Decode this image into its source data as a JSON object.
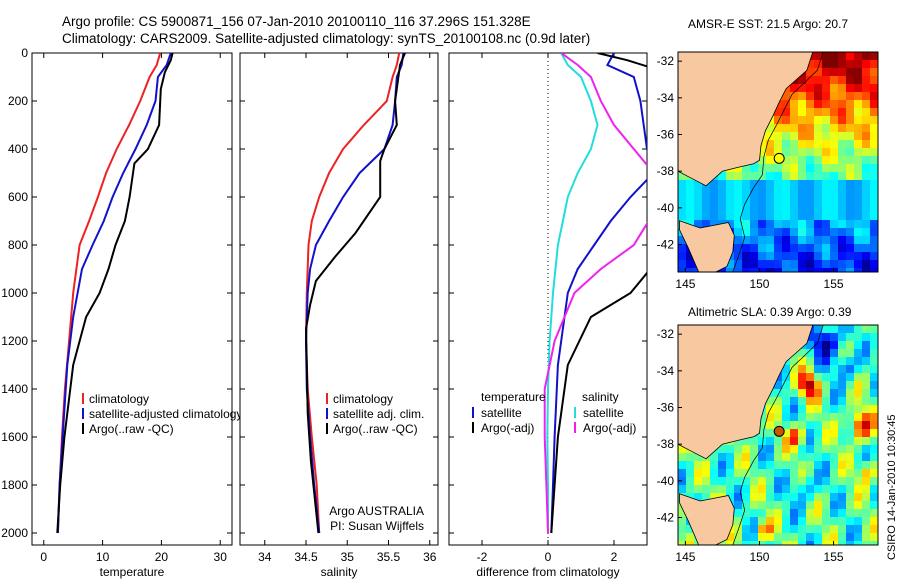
{
  "header": {
    "line1": "Argo profile: CS 5900871_156 07-Jan-2010 20100110_116 37.296S 151.328E",
    "line2": "Climatology: CARS2009. Satellite-adjusted climatology: synTS_20100108.nc (0.9d later)"
  },
  "credit": "CSIRO 14-Jan-2010 10:30:45",
  "colors": {
    "climatology": "#ee2222",
    "satellite": "#1111cc",
    "argo": "#000000",
    "temp_diff": "#22dddd",
    "sal_diff": "#ee22ee",
    "land": "#f8c8a0"
  },
  "chart_data": [
    {
      "type": "line",
      "name": "temperature-profile",
      "xlabel": "temperature",
      "ylabel": "",
      "xlim": [
        -2,
        32
      ],
      "ylim": [
        2050,
        0
      ],
      "xticks": [
        0,
        10,
        20,
        30
      ],
      "yticks": [
        0,
        200,
        400,
        600,
        800,
        1000,
        1200,
        1400,
        1600,
        1800,
        2000
      ],
      "series": [
        {
          "name": "climatology",
          "color": "#ee2222",
          "x": [
            19.8,
            19.2,
            18.0,
            16.4,
            14.5,
            12.4,
            10.6,
            9.2,
            7.7,
            6.1,
            5.0,
            4.3,
            3.6,
            3.1,
            2.7,
            2.4
          ],
          "y": [
            0,
            50,
            100,
            200,
            300,
            400,
            500,
            600,
            700,
            800,
            1000,
            1200,
            1400,
            1600,
            1800,
            2000
          ]
        },
        {
          "name": "satellite-adjusted climatology",
          "color": "#1111cc",
          "x": [
            21.6,
            20.9,
            19.4,
            19.0,
            17.5,
            15.6,
            13.5,
            11.7,
            10.2,
            8.3,
            6.5,
            5.0,
            4.0,
            3.2,
            2.7,
            2.4
          ],
          "y": [
            0,
            50,
            100,
            200,
            300,
            400,
            500,
            600,
            700,
            800,
            900,
            1100,
            1300,
            1600,
            1800,
            2000
          ]
        },
        {
          "name": "Argo(..raw -QC)",
          "color": "#000000",
          "x": [
            21.9,
            21.6,
            20.6,
            19.9,
            19.6,
            17.7,
            15.4,
            14.6,
            13.8,
            12.2,
            11.0,
            9.5,
            7.2,
            5.0,
            3.5,
            2.8,
            2.3
          ],
          "y": [
            0,
            30,
            80,
            150,
            300,
            400,
            460,
            600,
            700,
            800,
            900,
            1000,
            1100,
            1300,
            1600,
            1800,
            2000
          ]
        }
      ],
      "legend": [
        "climatology",
        "satellite-adjusted climatology",
        "Argo(..raw -QC)"
      ]
    },
    {
      "type": "line",
      "name": "salinity-profile",
      "xlabel": "salinity",
      "ylabel": "",
      "xlim": [
        33.7,
        36.1
      ],
      "ylim": [
        2050,
        0
      ],
      "xticks": [
        34,
        34.5,
        35,
        35.5,
        36
      ],
      "series": [
        {
          "name": "climatology",
          "color": "#ee2222",
          "x": [
            35.63,
            35.6,
            35.55,
            35.48,
            35.2,
            34.95,
            34.78,
            34.66,
            34.57,
            34.53,
            34.51,
            34.5,
            34.52,
            34.57,
            34.63,
            34.66
          ],
          "y": [
            0,
            50,
            100,
            200,
            300,
            400,
            500,
            600,
            700,
            800,
            1000,
            1200,
            1400,
            1600,
            1800,
            2000
          ]
        },
        {
          "name": "satellite adj. clim.",
          "color": "#1111cc",
          "x": [
            35.68,
            35.66,
            35.6,
            35.58,
            35.55,
            35.45,
            35.15,
            34.95,
            34.78,
            34.62,
            34.55,
            34.52,
            34.5,
            34.51,
            34.55,
            34.6,
            34.63,
            34.66
          ],
          "y": [
            0,
            50,
            100,
            200,
            300,
            400,
            500,
            600,
            700,
            800,
            900,
            1000,
            1200,
            1400,
            1600,
            1800,
            1900,
            2000
          ]
        },
        {
          "name": "Argo(..raw -QC)",
          "color": "#000000",
          "x": [
            35.7,
            35.64,
            35.62,
            35.58,
            35.6,
            35.45,
            35.4,
            35.4,
            35.1,
            34.85,
            34.62,
            34.55,
            34.5,
            34.51,
            34.52,
            34.56,
            34.62,
            34.65
          ],
          "y": [
            0,
            50,
            100,
            200,
            300,
            400,
            450,
            600,
            750,
            850,
            950,
            1050,
            1150,
            1300,
            1500,
            1700,
            1900,
            2000
          ]
        }
      ],
      "legend": [
        "climatology",
        "satellite adj. clim.",
        "Argo(..raw -QC)"
      ],
      "annotation": [
        "Argo AUSTRALIA",
        "PI: Susan Wijffels"
      ]
    },
    {
      "type": "line",
      "name": "difference-profile",
      "xlabel": "difference from climatology",
      "ylabel": "",
      "xlim": [
        -3,
        3
      ],
      "ylim": [
        2050,
        0
      ],
      "xticks": [
        -2,
        0,
        2
      ],
      "series": [
        {
          "name": "temperature satellite",
          "color": "#1111cc",
          "x": [
            2.0,
            1.8,
            2.6,
            2.8,
            2.9,
            3.0,
            3.2,
            2.5,
            1.9,
            1.4,
            0.9,
            0.6,
            0.5,
            0.3,
            0.2,
            0.15,
            0.1
          ],
          "y": [
            0,
            50,
            100,
            200,
            300,
            400,
            500,
            600,
            700,
            800,
            900,
            1000,
            1100,
            1300,
            1600,
            1800,
            2000
          ]
        },
        {
          "name": "temperature Argo(-adj)",
          "color": "#000000",
          "x": [
            1.5,
            2.4,
            3.1,
            3.3,
            3.5,
            3.5,
            3.5,
            3.4,
            3.3,
            3.2,
            3.1,
            2.5,
            1.3,
            0.6,
            0.3,
            0.2,
            0.1
          ],
          "y": [
            0,
            30,
            60,
            120,
            200,
            300,
            400,
            500,
            600,
            700,
            900,
            1000,
            1100,
            1300,
            1600,
            1800,
            2000
          ]
        },
        {
          "name": "salinity satellite",
          "color": "#22dddd",
          "x": [
            0.4,
            0.6,
            1.0,
            1.3,
            1.5,
            1.3,
            0.9,
            0.6,
            0.45,
            0.3,
            0.15,
            0.05,
            0.0,
            -0.02,
            0.0,
            0.0
          ],
          "y": [
            0,
            50,
            100,
            200,
            300,
            400,
            500,
            600,
            700,
            800,
            1000,
            1200,
            1400,
            1600,
            1800,
            2000
          ]
        },
        {
          "name": "salinity Argo(-adj)",
          "color": "#ee22ee",
          "x": [
            0.4,
            0.9,
            1.3,
            1.6,
            2.0,
            2.6,
            3.2,
            3.5,
            2.6,
            1.6,
            0.8,
            0.2,
            -0.1,
            -0.1,
            -0.05,
            0.0
          ],
          "y": [
            0,
            50,
            100,
            200,
            300,
            400,
            500,
            600,
            800,
            900,
            1000,
            1200,
            1400,
            1600,
            1800,
            2000
          ]
        }
      ],
      "legend": {
        "temperature_head": "temperature",
        "salinity_head": "salinity",
        "temperature": [
          "satellite",
          "Argo(-adj)"
        ],
        "salinity": [
          "satellite",
          "Argo(-adj)"
        ]
      }
    },
    {
      "type": "heatmap",
      "name": "sst-map",
      "title": "AMSR-E SST: 21.5 Argo: 20.7",
      "xlim": [
        144.5,
        158
      ],
      "ylim": [
        -43.5,
        -31.5
      ],
      "xticks": [
        145,
        150,
        155
      ],
      "yticks": [
        -32,
        -34,
        -36,
        -38,
        -40,
        -42
      ],
      "marker": {
        "lon": 151.33,
        "lat": -37.3
      }
    },
    {
      "type": "heatmap",
      "name": "sla-map",
      "title": "Altimetric SLA: 0.39 Argo: 0.39",
      "xlim": [
        144.5,
        158
      ],
      "ylim": [
        -43.5,
        -31.5
      ],
      "xticks": [
        145,
        150,
        155
      ],
      "yticks": [
        -32,
        -34,
        -36,
        -38,
        -40,
        -42
      ],
      "marker": {
        "lon": 151.33,
        "lat": -37.3
      }
    }
  ]
}
